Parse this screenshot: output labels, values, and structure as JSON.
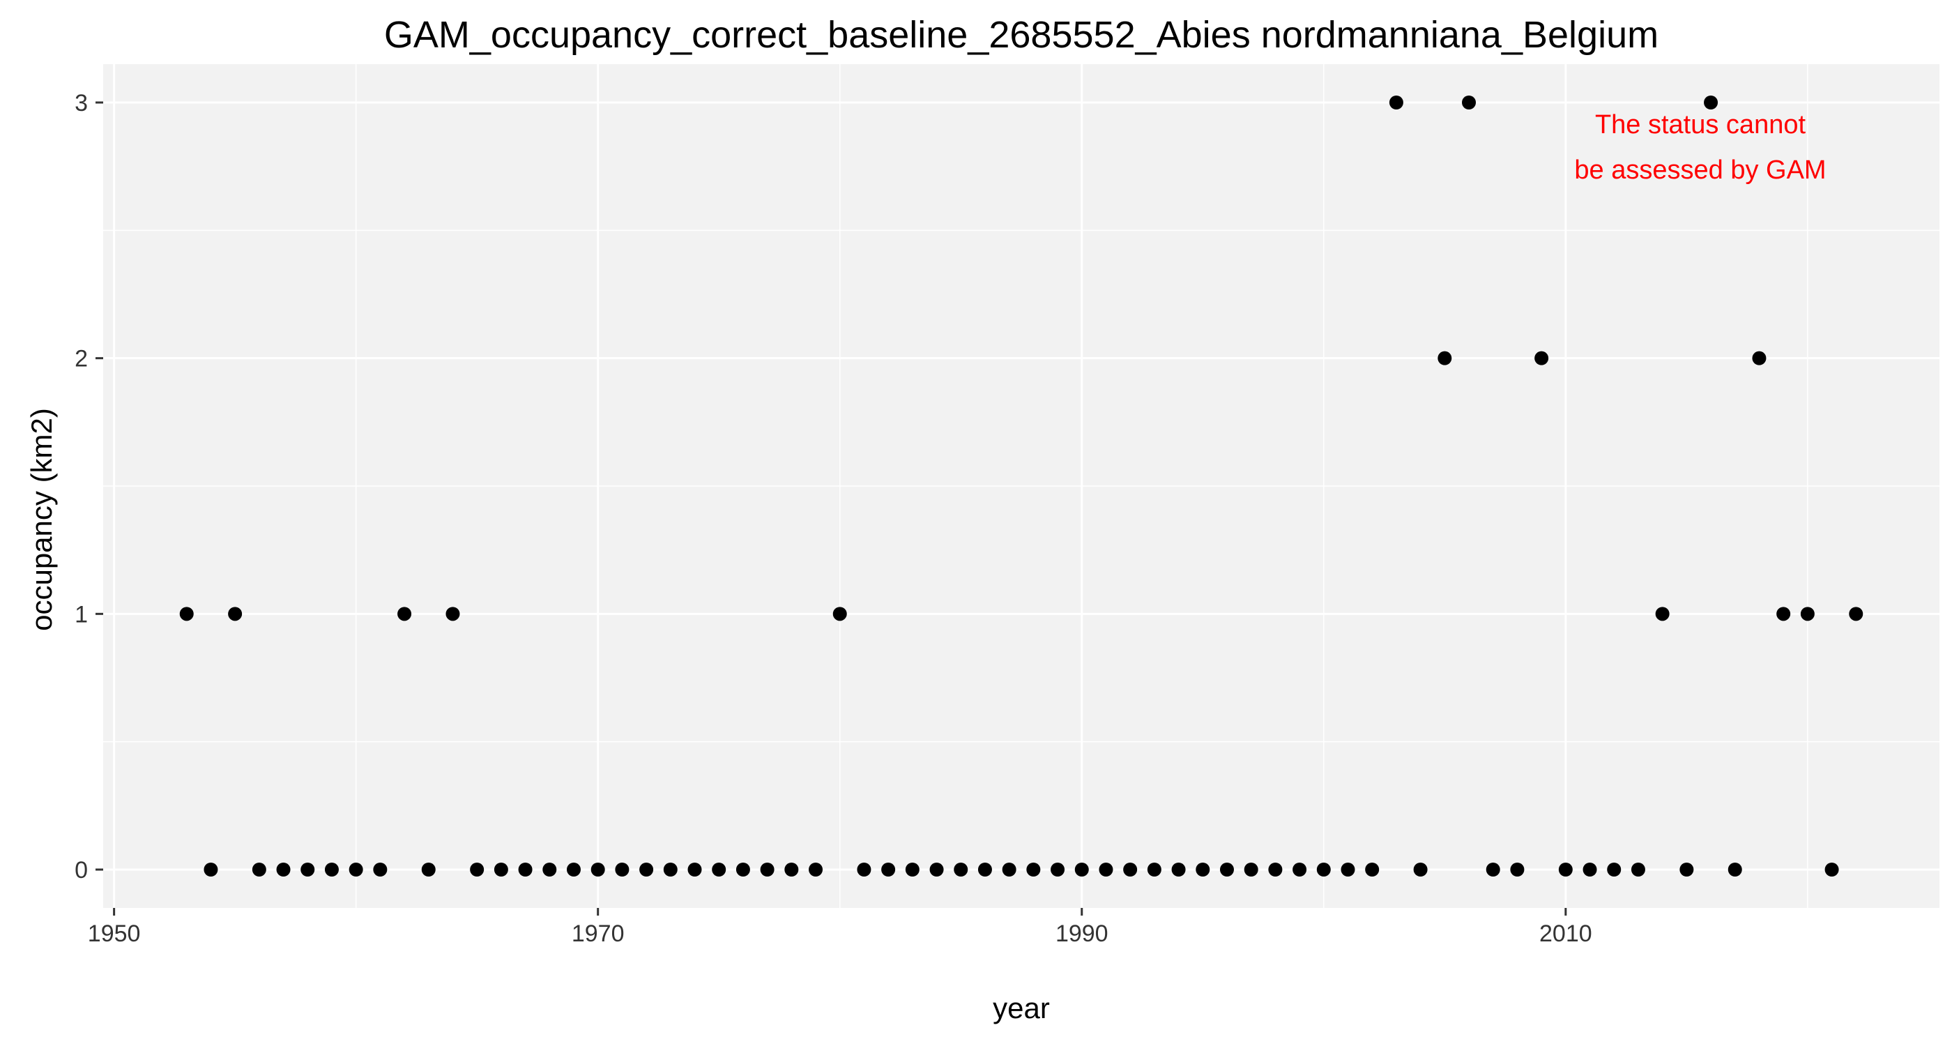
{
  "chart_data": {
    "type": "scatter",
    "title": "GAM_occupancy_correct_baseline_2685552_Abies nordmanniana_Belgium",
    "xlabel": "year",
    "ylabel": "occupancy (km2)",
    "xlim": [
      1949.55,
      2025.45
    ],
    "ylim": [
      -0.15,
      3.15
    ],
    "x_ticks": [
      1950,
      1970,
      1990,
      2010
    ],
    "y_ticks": [
      0,
      1,
      2,
      3
    ],
    "grid": true,
    "legend": "none",
    "colors": {
      "panel": "#f2f2f2",
      "grid": "#ffffff",
      "point": "#000000",
      "annotation": "#ff0000"
    },
    "annotation": [
      "The status cannot",
      "be assessed by GAM"
    ],
    "x": [
      1953,
      1954,
      1955,
      1956,
      1957,
      1958,
      1959,
      1960,
      1961,
      1962,
      1963,
      1964,
      1965,
      1966,
      1967,
      1968,
      1969,
      1970,
      1971,
      1972,
      1973,
      1974,
      1975,
      1976,
      1977,
      1978,
      1979,
      1980,
      1981,
      1982,
      1983,
      1984,
      1985,
      1986,
      1987,
      1988,
      1989,
      1990,
      1991,
      1992,
      1993,
      1994,
      1995,
      1996,
      1997,
      1998,
      1999,
      2000,
      2001,
      2002,
      2003,
      2004,
      2005,
      2006,
      2007,
      2008,
      2009,
      2010,
      2011,
      2012,
      2013,
      2014,
      2015,
      2016,
      2017,
      2018,
      2019,
      2020,
      2021,
      2022
    ],
    "y": [
      1,
      0,
      1,
      0,
      0,
      0,
      0,
      0,
      0,
      1,
      0,
      1,
      0,
      0,
      0,
      0,
      0,
      0,
      0,
      0,
      0,
      0,
      0,
      0,
      0,
      0,
      0,
      1,
      0,
      0,
      0,
      0,
      0,
      0,
      0,
      0,
      0,
      0,
      0,
      0,
      0,
      0,
      0,
      0,
      0,
      0,
      0,
      0,
      0,
      0,
      3,
      0,
      2,
      3,
      0,
      0,
      2,
      0,
      0,
      0,
      0,
      1,
      0,
      3,
      0,
      2,
      1,
      1,
      0,
      1
    ]
  }
}
